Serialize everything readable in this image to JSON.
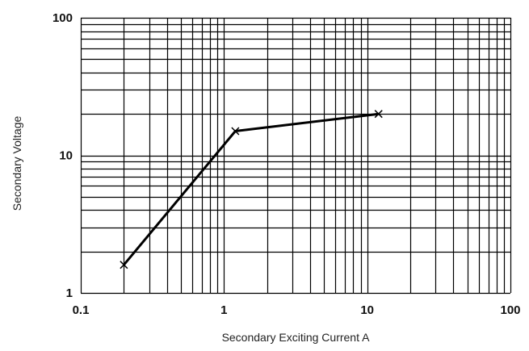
{
  "chart_data": {
    "type": "line",
    "x_scale": "log",
    "y_scale": "log",
    "xlim": [
      0.1,
      100
    ],
    "ylim": [
      1,
      100
    ],
    "grid": true,
    "xlabel": "Secondary Exciting Current  A",
    "ylabel": "Secondary Voltage",
    "x_tick_labels": [
      "0.1",
      "1",
      "10",
      "100"
    ],
    "y_tick_labels": [
      "1",
      "10",
      "100"
    ],
    "series": [
      {
        "x": [
          0.2,
          1.2,
          12
        ],
        "y": [
          1.6,
          15,
          20
        ],
        "color": "#000000",
        "marker": "x"
      }
    ]
  }
}
